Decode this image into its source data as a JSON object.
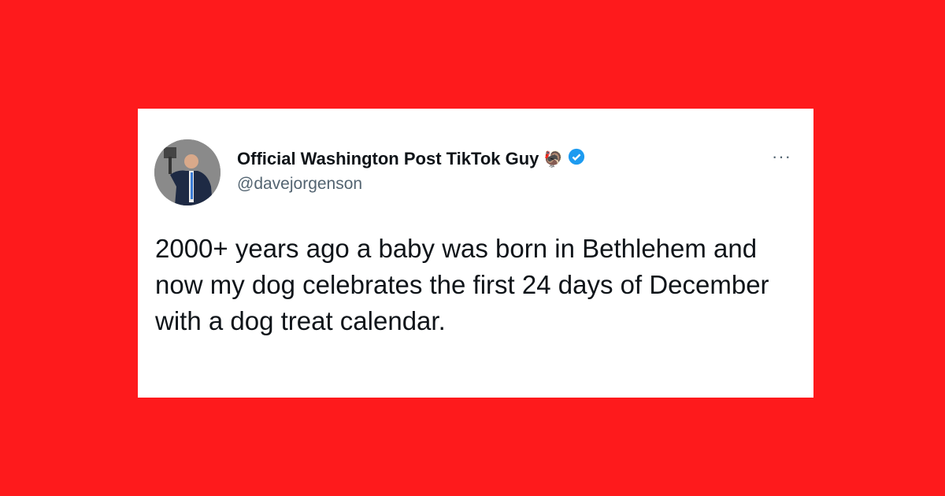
{
  "tweet": {
    "display_name": "Official Washington Post TikTok Guy",
    "emoji": "🦃",
    "handle": "@davejorgenson",
    "more_label": "···",
    "text": "2000+ years ago a baby was born in Bethlehem and now my dog celebrates the first 24 days of December with a dog treat calendar.",
    "verified_color": "#1d9bf0"
  },
  "background_color": "#fe1a1c"
}
